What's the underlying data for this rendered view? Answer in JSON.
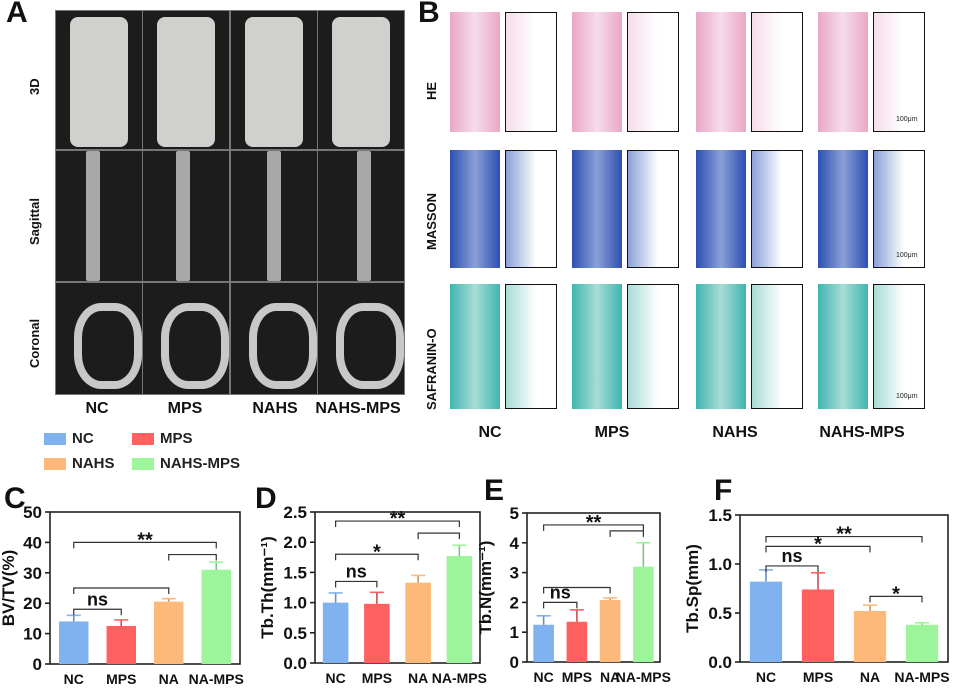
{
  "panels": {
    "A": "A",
    "B": "B",
    "C": "C",
    "D": "D",
    "E": "E",
    "F": "F"
  },
  "panelA": {
    "rows": [
      "3D",
      "Sagittal",
      "Coronal"
    ],
    "columns": [
      "NC",
      "MPS",
      "NAHS",
      "NAHS-MPS"
    ]
  },
  "panelB": {
    "rows": [
      "HE",
      "MASSON",
      "SAFRANIN-O"
    ],
    "columns": [
      "NC",
      "MPS",
      "NAHS",
      "NAHS-MPS"
    ],
    "scale_bar": "100μm"
  },
  "legend": [
    {
      "label": "NC",
      "color": "#7fb2ee"
    },
    {
      "label": "MPS",
      "color": "#ff6161"
    },
    {
      "label": "NAHS",
      "color": "#fdb97a"
    },
    {
      "label": "NAHS-MPS",
      "color": "#9cf59a"
    }
  ],
  "chart_data": [
    {
      "type": "bar",
      "panel": "C",
      "categories": [
        "NC",
        "MPS",
        "NA",
        "NA-MPS"
      ],
      "values": [
        14,
        12.5,
        20.5,
        31
      ],
      "error": [
        2,
        2,
        1,
        2.5
      ],
      "ylabel": "BV/TV(%)",
      "ylim": [
        0,
        50
      ],
      "yticks": [
        "0",
        "10",
        "20",
        "30",
        "40",
        "50"
      ],
      "annotations": [
        {
          "from": 0,
          "to": 3,
          "y": 40,
          "label": "**"
        },
        {
          "from": 2,
          "to": 3,
          "y": 36,
          "label": ""
        },
        {
          "from": 0,
          "to": 2,
          "y": 25,
          "label": ""
        },
        {
          "from": 0,
          "to": 1,
          "y": 18,
          "label": "ns"
        }
      ]
    },
    {
      "type": "bar",
      "panel": "D",
      "categories": [
        "NC",
        "MPS",
        "NA",
        "NA-MPS"
      ],
      "values": [
        1.0,
        0.98,
        1.33,
        1.77
      ],
      "error": [
        0.16,
        0.19,
        0.12,
        0.18
      ],
      "ylabel": "Tb.Th(mm⁻¹)",
      "ylim": [
        0,
        2.5
      ],
      "yticks": [
        "0.0",
        "0.5",
        "1.0",
        "1.5",
        "2.0",
        "2.5"
      ],
      "annotations": [
        {
          "from": 0,
          "to": 3,
          "y": 2.35,
          "label": "**"
        },
        {
          "from": 2,
          "to": 3,
          "y": 2.15,
          "label": ""
        },
        {
          "from": 0,
          "to": 2,
          "y": 1.8,
          "label": "*"
        },
        {
          "from": 0,
          "to": 1,
          "y": 1.35,
          "label": "ns"
        }
      ]
    },
    {
      "type": "bar",
      "panel": "E",
      "categories": [
        "NC",
        "MPS",
        "NA",
        "NA-MPS"
      ],
      "values": [
        1.25,
        1.35,
        2.08,
        3.2
      ],
      "error": [
        0.3,
        0.4,
        0.07,
        0.8
      ],
      "ylabel": "Tb.N(mm⁻¹)",
      "ylim": [
        0,
        5
      ],
      "yticks": [
        "0",
        "1",
        "2",
        "3",
        "4",
        "5"
      ],
      "annotations": [
        {
          "from": 0,
          "to": 3,
          "y": 4.6,
          "label": "**"
        },
        {
          "from": 2,
          "to": 3,
          "y": 4.4,
          "label": ""
        },
        {
          "from": 0,
          "to": 2,
          "y": 2.5,
          "label": ""
        },
        {
          "from": 0,
          "to": 1,
          "y": 2.0,
          "label": "ns"
        }
      ]
    },
    {
      "type": "bar",
      "panel": "F",
      "categories": [
        "NC",
        "MPS",
        "NA",
        "NA-MPS"
      ],
      "values": [
        0.82,
        0.74,
        0.52,
        0.38
      ],
      "error": [
        0.12,
        0.17,
        0.06,
        0.02
      ],
      "ylabel": "Tb.Sp(mm)",
      "ylim": [
        0,
        1.5
      ],
      "yticks": [
        "0.0",
        "0.5",
        "1.0",
        "1.5"
      ],
      "annotations": [
        {
          "from": 0,
          "to": 3,
          "y": 1.28,
          "label": "**"
        },
        {
          "from": 0,
          "to": 2,
          "y": 1.18,
          "label": "*"
        },
        {
          "from": 0,
          "to": 1,
          "y": 0.98,
          "label": "ns"
        },
        {
          "from": 2,
          "to": 3,
          "y": 0.67,
          "label": "*"
        }
      ]
    }
  ]
}
